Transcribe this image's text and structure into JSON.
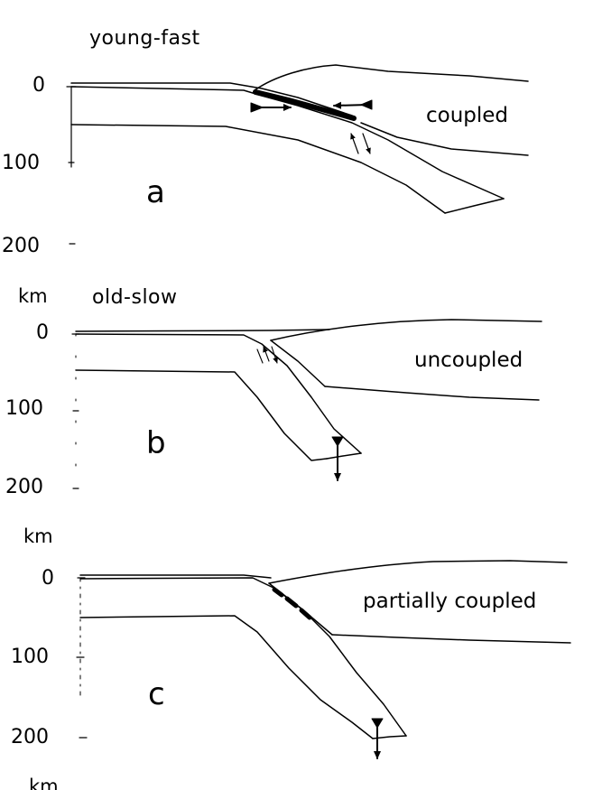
{
  "panels": [
    {
      "id": "a",
      "title": "young-fast",
      "coupling": "coupled",
      "letter": "a",
      "depth_ticks": [
        "0",
        "100",
        "200"
      ],
      "depth_unit": "km"
    },
    {
      "id": "b",
      "title": "old-slow",
      "coupling": "uncoupled",
      "letter": "b",
      "depth_ticks": [
        "0",
        "100",
        "200"
      ],
      "depth_unit": "km"
    },
    {
      "id": "c",
      "title": "",
      "coupling": "partially coupled",
      "letter": "c",
      "depth_ticks": [
        "0",
        "100",
        "200"
      ],
      "depth_unit": "km"
    }
  ],
  "colors": {
    "ink": "#000000",
    "background": "#ffffff"
  }
}
